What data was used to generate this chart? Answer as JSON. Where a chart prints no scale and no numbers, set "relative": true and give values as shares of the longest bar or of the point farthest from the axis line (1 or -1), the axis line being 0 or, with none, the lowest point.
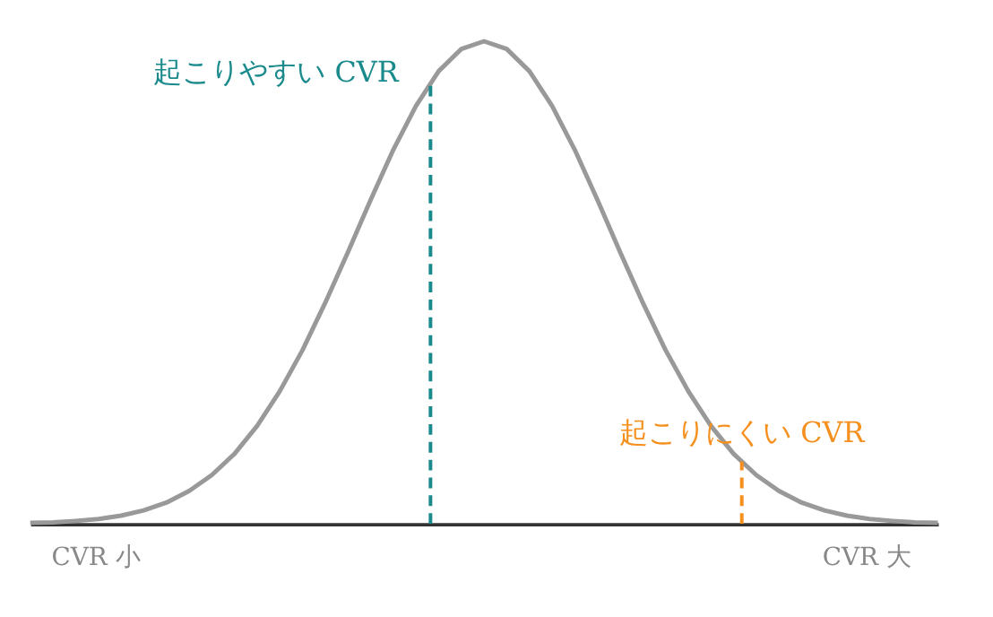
{
  "chart_data": {
    "type": "line",
    "relative": true,
    "categories": [
      null,
      null,
      null,
      null,
      null,
      null,
      null,
      null,
      null,
      null,
      null,
      null,
      null,
      null,
      null,
      null,
      null,
      null,
      null,
      null,
      null,
      null,
      null,
      null,
      null,
      null,
      null,
      null,
      null,
      null,
      null,
      null,
      null,
      null,
      null,
      null,
      null,
      null,
      null,
      null,
      null
    ],
    "series": [
      {
        "color": "#999999",
        "values": [
          0.002,
          0.003,
          0.006,
          0.01,
          0.017,
          0.028,
          0.044,
          0.068,
          0.101,
          0.145,
          0.203,
          0.275,
          0.36,
          0.458,
          0.563,
          0.671,
          0.775,
          0.866,
          0.938,
          0.984,
          1,
          0.984,
          0.938,
          0.866,
          0.775,
          0.671,
          0.563,
          0.458,
          0.36,
          0.275,
          0.203,
          0.145,
          0.101,
          0.068,
          0.044,
          0.028,
          0.017,
          0.01,
          0.006,
          0.003,
          0.002
        ]
      }
    ],
    "annotations": [
      "CVR 小",
      "CVR 大",
      "起こりやすい CVR",
      "起こりにくい CVR"
    ],
    "legend": false,
    "marker": "none",
    "line_style": "solid"
  }
}
